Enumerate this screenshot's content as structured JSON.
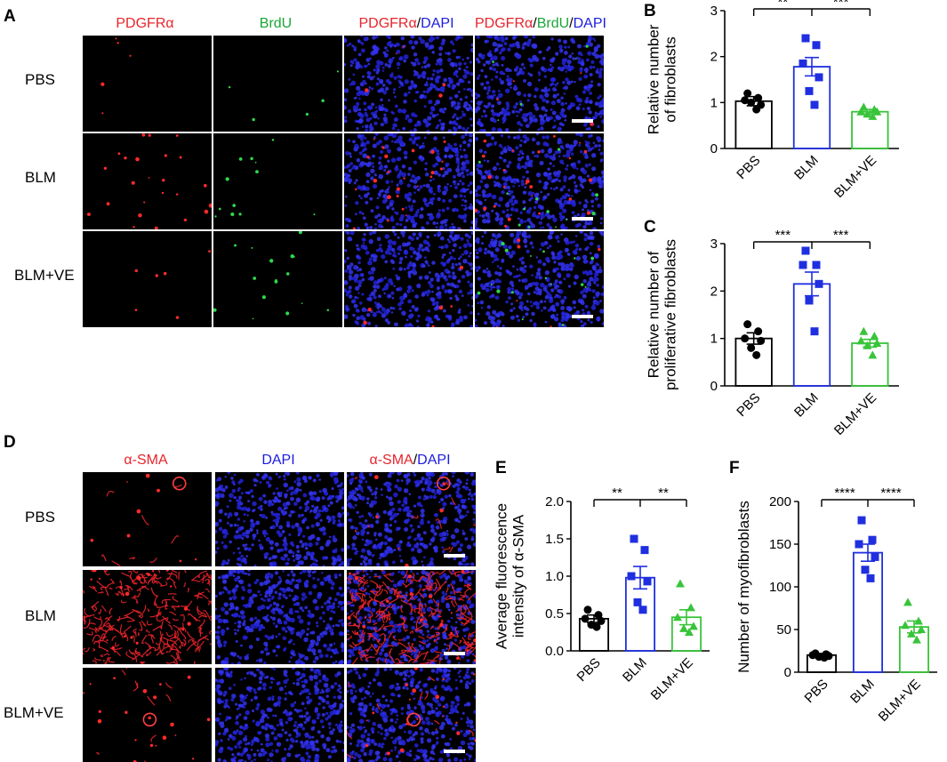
{
  "figure": {
    "panelA": {
      "label": "A",
      "columns": [
        "PDGFRα",
        "BrdU",
        "PDGFRα/DAPI",
        "PDGFRα/BrdU/DAPI"
      ],
      "rows": [
        "PBS",
        "BLM",
        "BLM+VE"
      ]
    },
    "panelD": {
      "label": "D",
      "columns": [
        "α-SMA",
        "DAPI",
        "α-SMA/DAPI"
      ],
      "rows": [
        "PBS",
        "BLM",
        "BLM+VE"
      ]
    },
    "colors": {
      "red": "#e8242b",
      "green": "#1aa637",
      "blue": "#1c1ce0",
      "bar_black": "#000000",
      "bar_blue": "#1f2fe0",
      "bar_green": "#38c43a"
    }
  },
  "chart_data": [
    {
      "panel": "B",
      "type": "bar",
      "categories": [
        "PBS",
        "BLM",
        "BLM+VE"
      ],
      "values": [
        1.03,
        1.78,
        0.8
      ],
      "errors": [
        0.1,
        0.2,
        0.05
      ],
      "points": [
        [
          1.2,
          1.1,
          1.05,
          0.95,
          1.0,
          0.85
        ],
        [
          2.4,
          2.25,
          1.85,
          1.55,
          1.25,
          0.95
        ],
        [
          0.9,
          0.85,
          0.8,
          0.8,
          0.75,
          0.7
        ]
      ],
      "marker": [
        "circle",
        "square",
        "triangle"
      ],
      "ylabel": "Relative number\nof fibroblasts",
      "ylim": [
        0,
        3
      ],
      "yticks": [
        "0",
        "1",
        "2",
        "3"
      ],
      "significance": [
        "**",
        "***"
      ]
    },
    {
      "panel": "C",
      "type": "bar",
      "categories": [
        "PBS",
        "BLM",
        "BLM+VE"
      ],
      "values": [
        1.0,
        2.15,
        0.9
      ],
      "errors": [
        0.12,
        0.25,
        0.08
      ],
      "points": [
        [
          1.3,
          1.15,
          1.0,
          0.95,
          0.8,
          0.65
        ],
        [
          2.85,
          2.55,
          2.55,
          2.15,
          1.8,
          1.15
        ],
        [
          1.15,
          1.05,
          0.95,
          0.9,
          0.85,
          0.65
        ]
      ],
      "marker": [
        "circle",
        "square",
        "triangle"
      ],
      "ylabel": "Relative number of\nproliferative fibroblasts",
      "ylim": [
        0,
        3
      ],
      "yticks": [
        "0",
        "1",
        "2",
        "3"
      ],
      "significance": [
        "***",
        "***"
      ]
    },
    {
      "panel": "E",
      "type": "bar",
      "categories": [
        "PBS",
        "BLM",
        "BLM+VE"
      ],
      "values": [
        0.43,
        0.98,
        0.45
      ],
      "errors": [
        0.05,
        0.15,
        0.1
      ],
      "points": [
        [
          0.55,
          0.48,
          0.43,
          0.4,
          0.35,
          0.32
        ],
        [
          1.5,
          1.35,
          1.0,
          0.93,
          0.65,
          0.55
        ],
        [
          0.9,
          0.58,
          0.45,
          0.33,
          0.3,
          0.25
        ]
      ],
      "marker": [
        "circle",
        "square",
        "triangle"
      ],
      "ylabel": "Average fluorescence\nintensity of α-SMA",
      "ylim": [
        0,
        2
      ],
      "yticks": [
        "0.0",
        "0.5",
        "1.0",
        "1.5",
        "2.0"
      ],
      "significance": [
        "**",
        "**"
      ]
    },
    {
      "panel": "F",
      "type": "bar",
      "categories": [
        "PBS",
        "BLM",
        "BLM+VE"
      ],
      "values": [
        20,
        140,
        53
      ],
      "errors": [
        2,
        10,
        7
      ],
      "points": [
        [
          22,
          21,
          20,
          19,
          18,
          17
        ],
        [
          178,
          155,
          150,
          135,
          120,
          110
        ],
        [
          82,
          60,
          55,
          50,
          45,
          38
        ]
      ],
      "marker": [
        "circle",
        "square",
        "triangle"
      ],
      "ylabel": "Number of myofibroblasts",
      "ylim": [
        0,
        200
      ],
      "yticks": [
        "0",
        "50",
        "100",
        "150",
        "200"
      ],
      "significance": [
        "****",
        "****"
      ]
    }
  ]
}
